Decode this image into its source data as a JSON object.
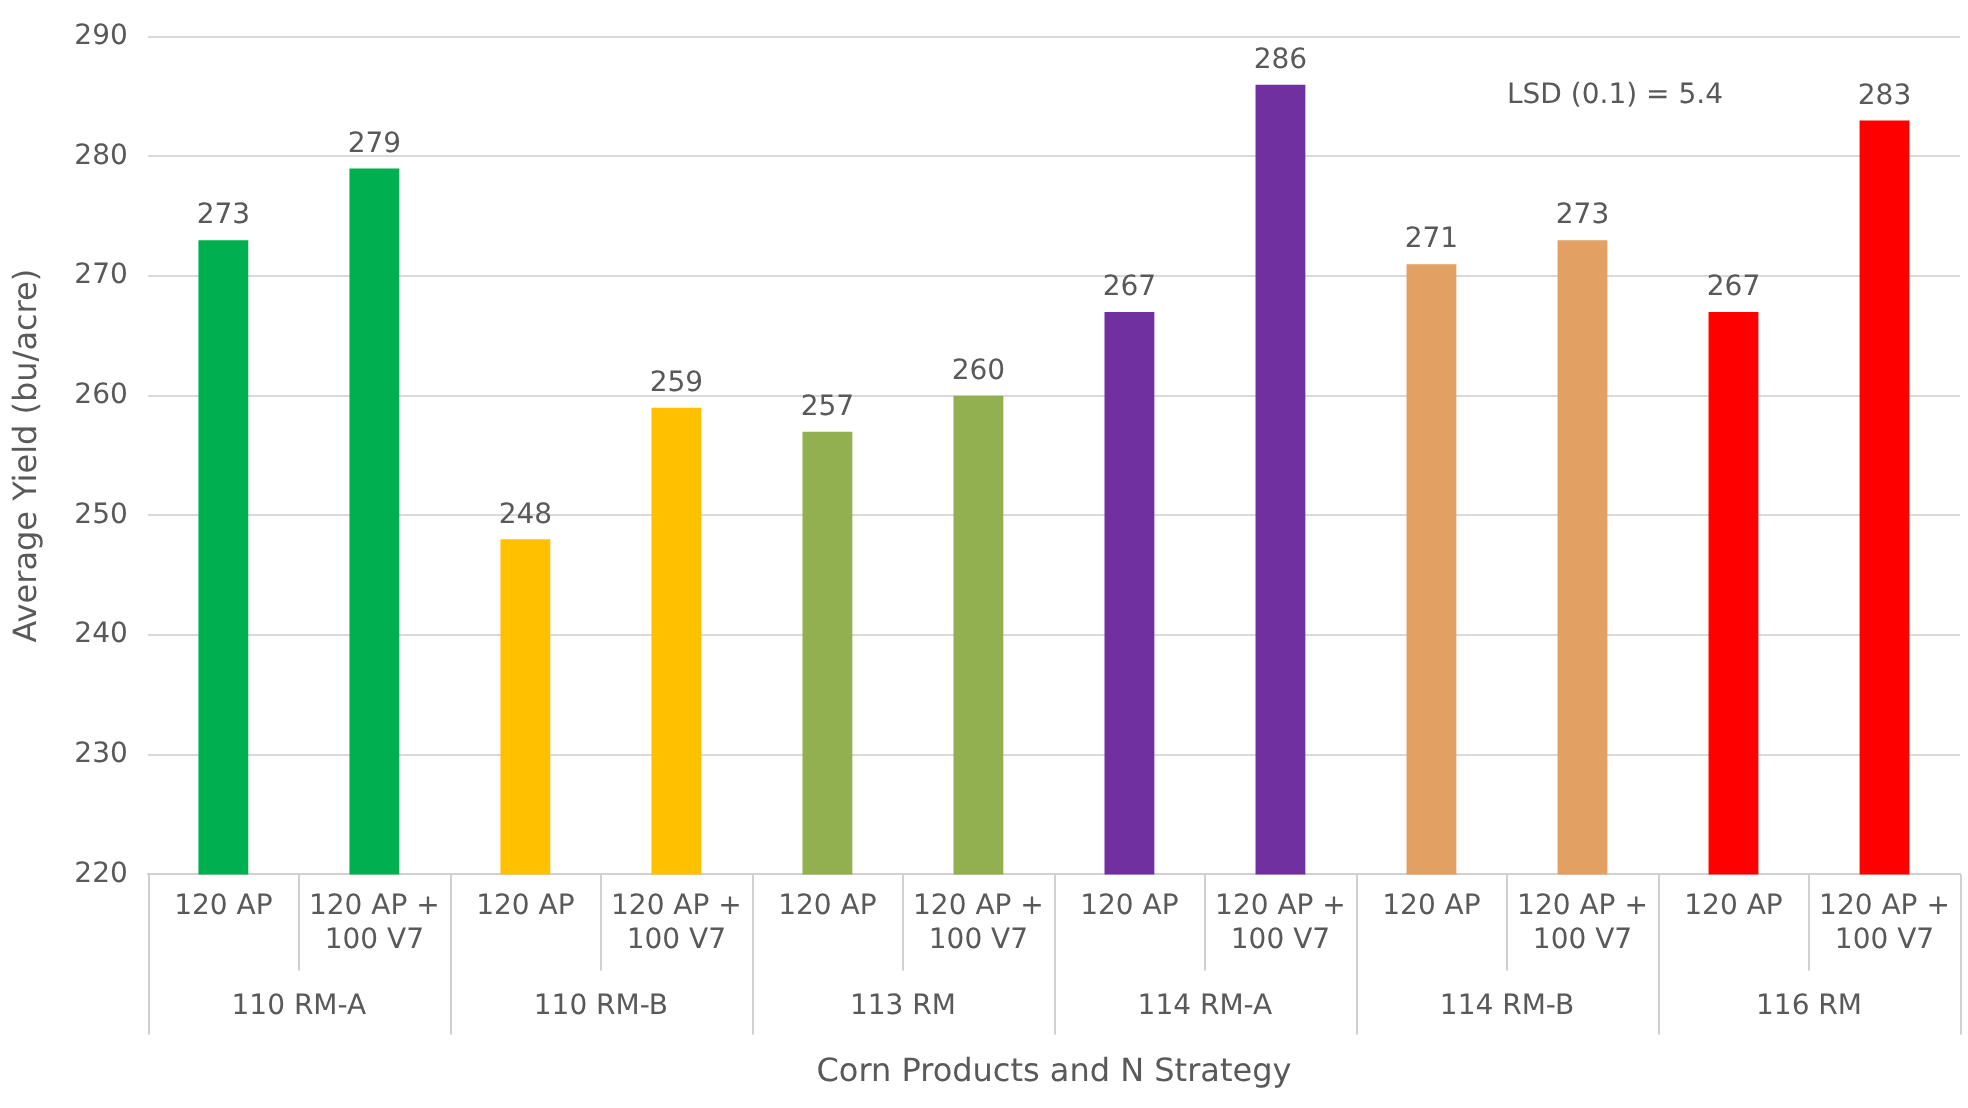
{
  "chart_data": {
    "type": "bar",
    "xlabel": "Corn Products and N Strategy",
    "ylabel": "Average Yield (bu/acre)",
    "categories": [
      "120 AP",
      "120 AP + 100 V7",
      "120 AP",
      "120 AP + 100 V7",
      "120 AP",
      "120 AP + 100 V7",
      "120 AP",
      "120 AP + 100 V7",
      "120 AP",
      "120 AP + 100 V7",
      "120 AP",
      "120 AP + 100 V7"
    ],
    "values": [
      273,
      279,
      248,
      259,
      257,
      260,
      267,
      286,
      271,
      273,
      267,
      283
    ],
    "colors": [
      "#00b050",
      "#00b050",
      "#ffc000",
      "#ffc000",
      "#92b050",
      "#92b050",
      "#7030a0",
      "#7030a0",
      "#e2a062",
      "#e2a062",
      "#ff0000",
      "#ff0000"
    ],
    "annotations": [
      "110 RM-A",
      "110 RM-B",
      "113 RM",
      "114 RM-A",
      "114 RM-B",
      "116 RM",
      "LSD (0.1) = 5.4"
    ],
    "ylim": [
      220,
      290
    ],
    "yticks": [
      220,
      230,
      240,
      250,
      260,
      270,
      280,
      290
    ],
    "grid": "y",
    "legend": false,
    "data_labels": true
  }
}
